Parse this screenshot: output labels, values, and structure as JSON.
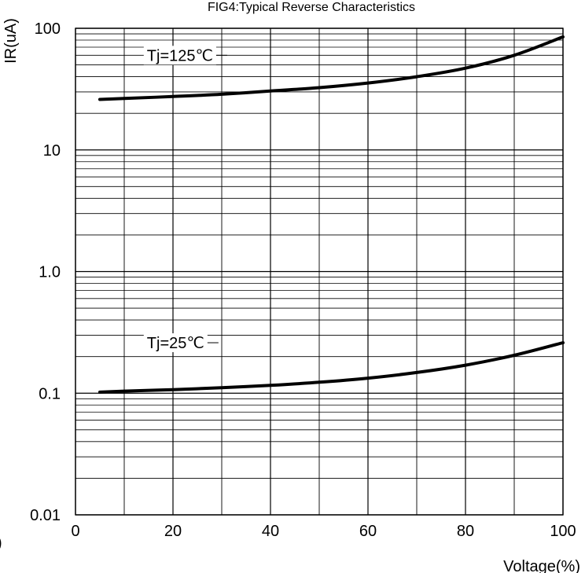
{
  "chart_data": {
    "type": "line",
    "title": "FIG4:Typical Reverse Characteristics",
    "xlabel": "Voltage(%)",
    "ylabel": "IR(uA)",
    "x_scale": "linear",
    "y_scale": "log",
    "xlim": [
      0,
      100
    ],
    "ylim": [
      0.01,
      100
    ],
    "x_ticks": [
      0,
      20,
      40,
      60,
      80,
      100
    ],
    "x_tick_labels": [
      "0",
      "20",
      "40",
      "60",
      "80",
      "100"
    ],
    "y_ticks": [
      0.01,
      0.1,
      1,
      10,
      100
    ],
    "y_tick_labels": [
      "0.01",
      "0.1",
      "1.0",
      "10",
      "100"
    ],
    "grid": true,
    "series": [
      {
        "name": "Tj=125℃",
        "x": [
          5,
          10,
          20,
          30,
          40,
          50,
          60,
          70,
          80,
          90,
          100
        ],
        "y": [
          26,
          26.5,
          27.5,
          28.7,
          30.5,
          32.5,
          35.5,
          40,
          47,
          60,
          85
        ]
      },
      {
        "name": "Tj=25℃",
        "x": [
          5,
          10,
          20,
          30,
          40,
          50,
          60,
          70,
          80,
          90,
          100
        ],
        "y": [
          0.102,
          0.104,
          0.107,
          0.111,
          0.116,
          0.123,
          0.133,
          0.148,
          0.17,
          0.205,
          0.26
        ]
      }
    ],
    "color": "#000000"
  },
  "extra": {
    "left_fragment": ")"
  }
}
